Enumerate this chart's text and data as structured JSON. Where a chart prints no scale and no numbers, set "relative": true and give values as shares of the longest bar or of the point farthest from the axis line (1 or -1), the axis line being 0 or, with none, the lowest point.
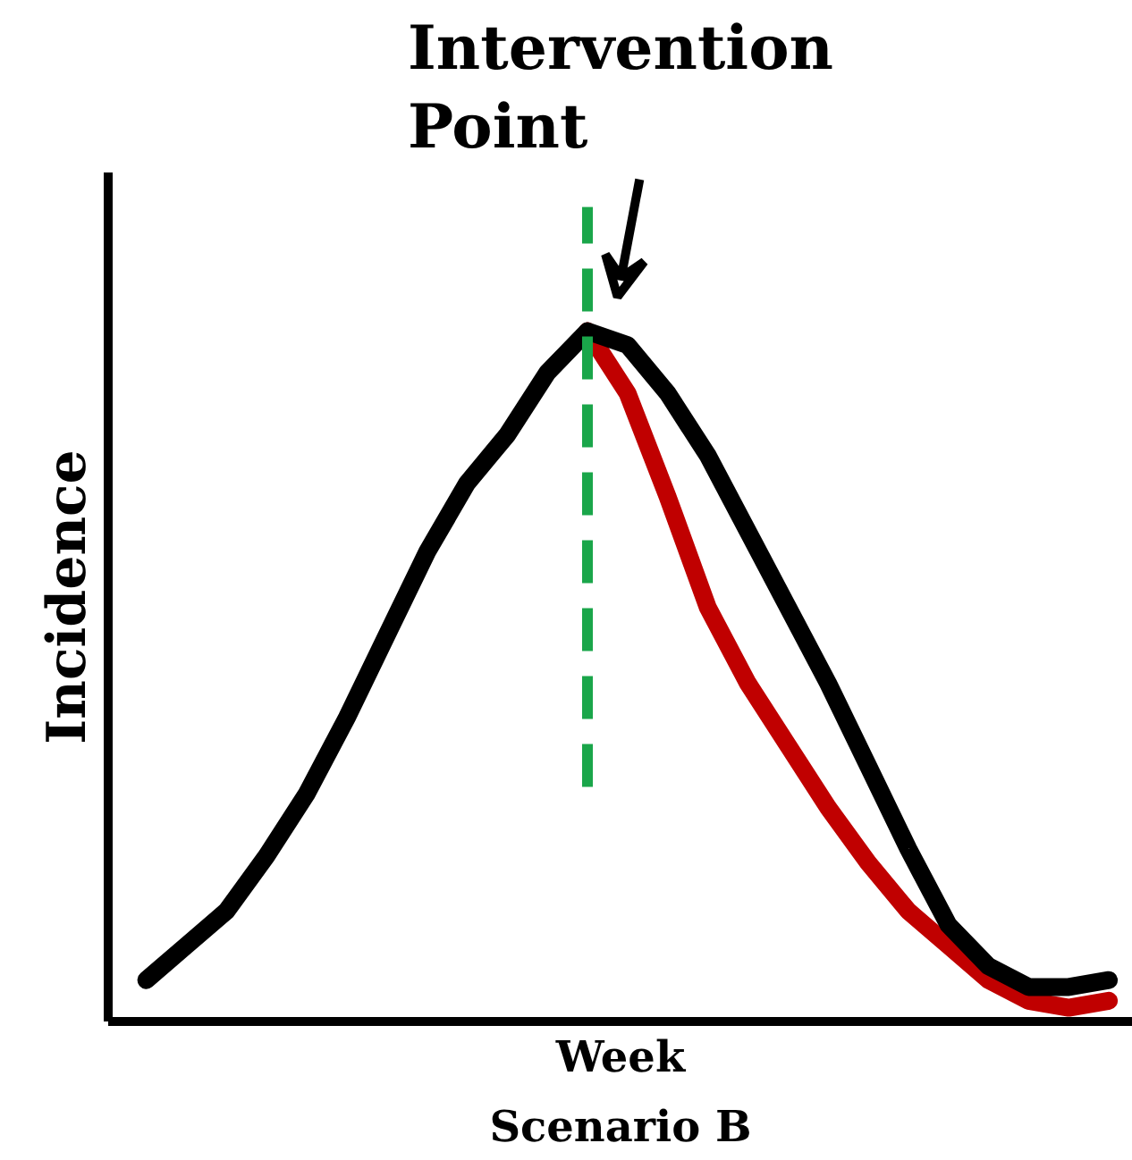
{
  "chart_data": {
    "type": "line",
    "relative": true,
    "xlabel": "Week",
    "ylabel": "Incidence",
    "annotations": [
      "Intervention Point",
      "Scenario B"
    ],
    "categories": [
      null,
      null,
      null,
      null,
      null,
      null,
      null,
      null,
      null,
      null,
      null,
      null,
      null,
      null,
      null,
      null,
      null,
      null,
      null,
      null,
      null,
      null,
      null,
      null,
      null
    ],
    "series": [
      {
        "color": "#000000",
        "values": [
          0.06,
          0.11,
          0.16,
          0.24,
          0.33,
          0.44,
          0.56,
          0.68,
          0.78,
          0.85,
          0.94,
          1.0,
          0.98,
          0.91,
          0.82,
          0.71,
          0.6,
          0.49,
          0.37,
          0.25,
          0.14,
          0.08,
          0.05,
          0.05,
          0.06
        ]
      },
      {
        "color": "#c00000",
        "values": [
          null,
          null,
          null,
          null,
          null,
          null,
          null,
          null,
          null,
          null,
          null,
          1.0,
          0.91,
          0.76,
          0.6,
          0.49,
          0.4,
          0.31,
          0.23,
          0.16,
          0.11,
          0.06,
          0.03,
          0.02,
          0.03
        ]
      }
    ]
  }
}
